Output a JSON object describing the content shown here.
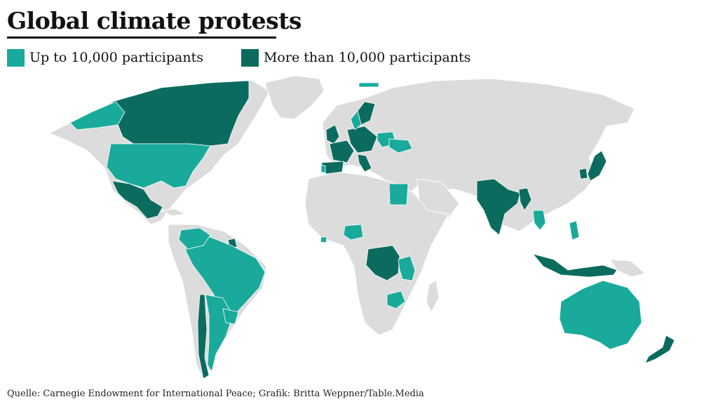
{
  "title": "Global climate protests",
  "legend": [
    {
      "label": "Up to 10,000 participants",
      "color": "#1aaa9b"
    },
    {
      "label": "More than 10,000 participants",
      "color": "#0c6b5f"
    }
  ],
  "colors": {
    "land": "#dcdcdc",
    "up_to_10000": "#1aaa9b",
    "more_than_10000": "#0c6b5f",
    "background": "#ffffff"
  },
  "source": "Quelle: Carnegie Endowment for International Peace; Grafik: Britta Weppner/Table.Media"
}
